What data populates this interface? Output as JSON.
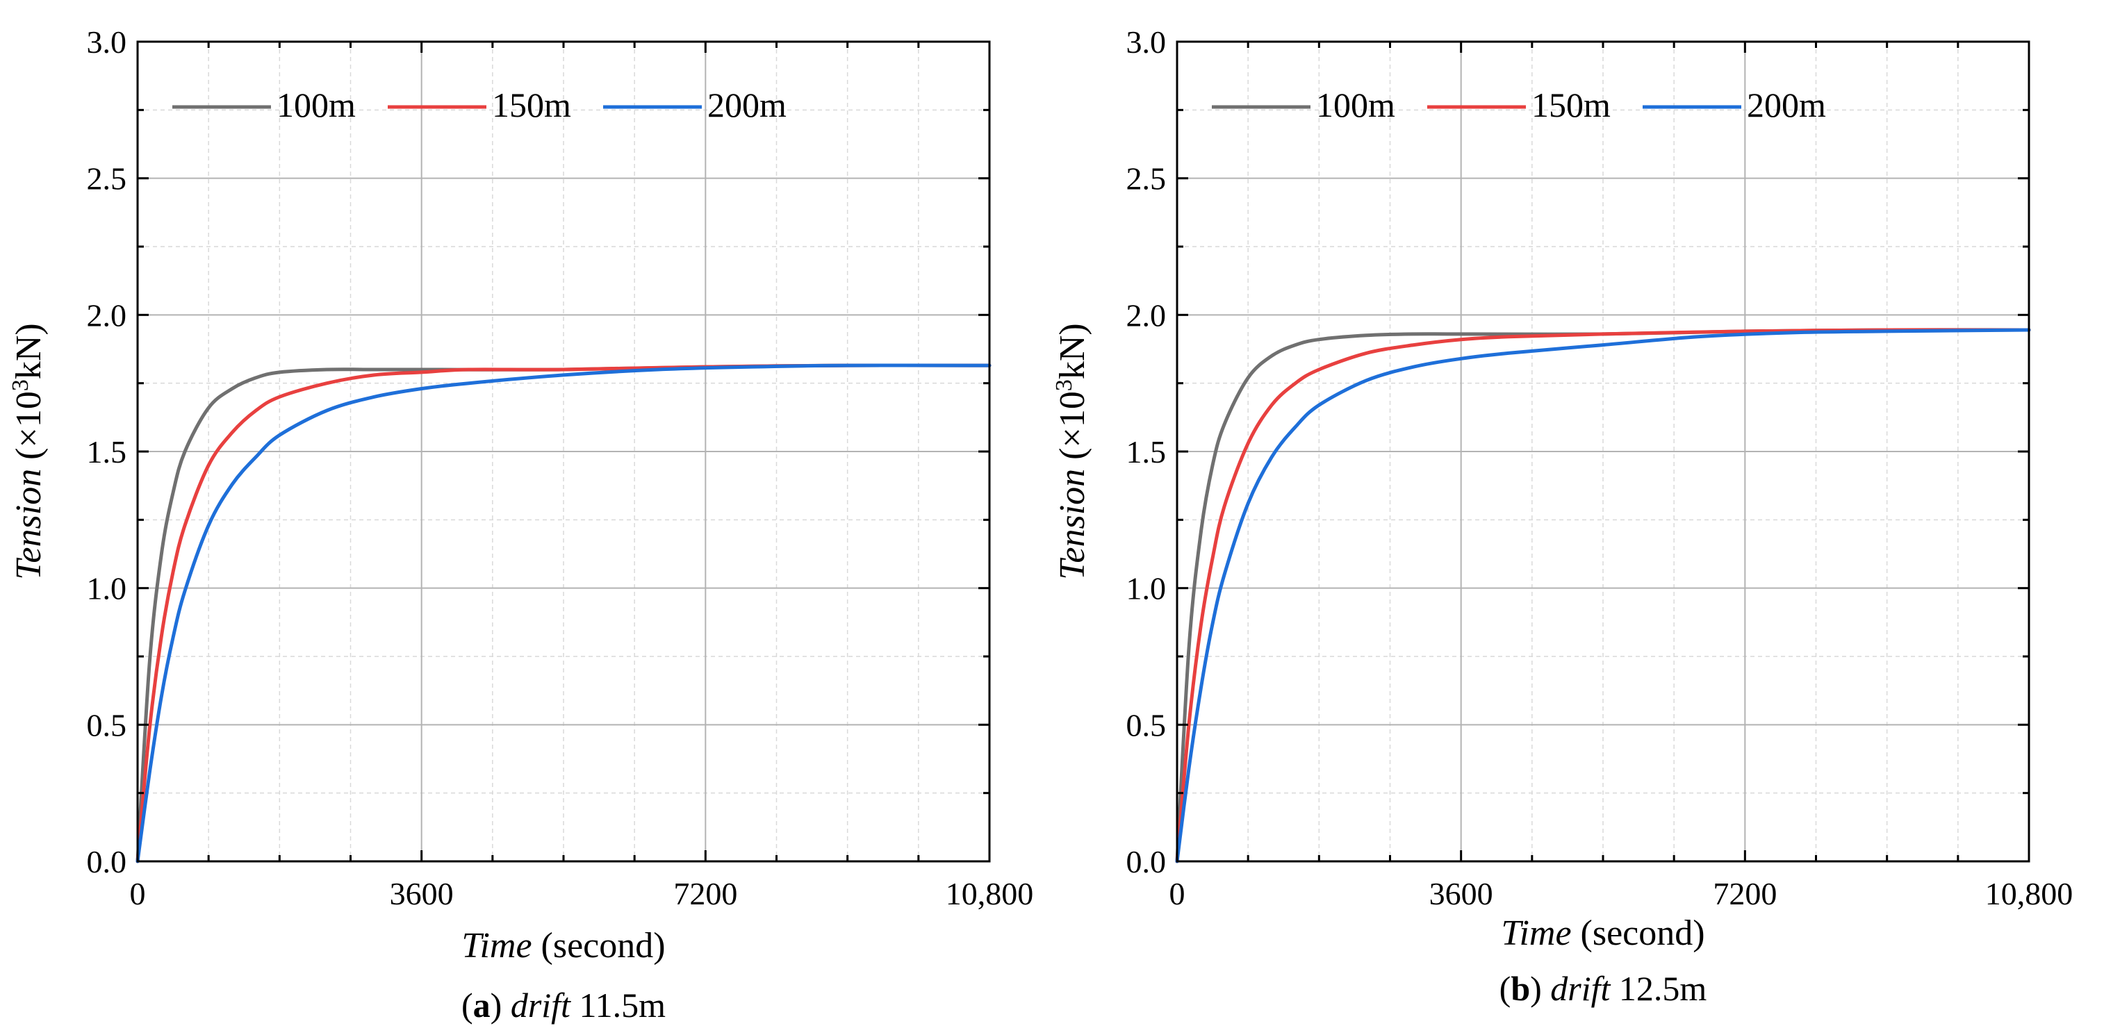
{
  "chart_data": [
    {
      "type": "line",
      "panel_label": "a",
      "caption_italic": "drift",
      "caption_rest": "11.5m",
      "xlabel_italic": "Time",
      "xlabel_rest": "(second)",
      "ylabel_italic": "Tension",
      "ylabel_unit_pre": "(×10",
      "ylabel_unit_sup": "3",
      "ylabel_unit_post": "kN)",
      "xlim": [
        0,
        10800
      ],
      "ylim": [
        0,
        3.0
      ],
      "x_ticks": [
        0,
        3600,
        7200,
        10800
      ],
      "x_tick_labels": [
        "0",
        "3600",
        "7200",
        "10,800"
      ],
      "y_ticks": [
        0,
        0.5,
        1.0,
        1.5,
        2.0,
        2.5,
        3.0
      ],
      "y_tick_labels": [
        "0.0",
        "0.5",
        "1.0",
        "1.5",
        "2.0",
        "2.5",
        "3.0"
      ],
      "grid": true,
      "legend_position": "top",
      "series": [
        {
          "name": "100m",
          "color": "#707070",
          "x": [
            0,
            150,
            300,
            450,
            600,
            900,
            1200,
            1500,
            1800,
            2400,
            3000,
            3600,
            5400,
            7200,
            9000,
            10800
          ],
          "y": [
            0,
            0.72,
            1.12,
            1.35,
            1.5,
            1.66,
            1.73,
            1.77,
            1.79,
            1.8,
            1.8,
            1.8,
            1.8,
            1.81,
            1.815,
            1.815
          ]
        },
        {
          "name": "150m",
          "color": "#e8403f",
          "x": [
            0,
            150,
            300,
            450,
            600,
            900,
            1200,
            1500,
            1800,
            2400,
            3000,
            3600,
            4200,
            5400,
            7200,
            9000,
            10800
          ],
          "y": [
            0,
            0.48,
            0.82,
            1.06,
            1.23,
            1.45,
            1.57,
            1.65,
            1.7,
            1.75,
            1.78,
            1.79,
            1.8,
            1.8,
            1.81,
            1.815,
            1.815
          ]
        },
        {
          "name": "200m",
          "color": "#1e6fd9",
          "x": [
            0,
            150,
            300,
            450,
            600,
            900,
            1200,
            1500,
            1800,
            2400,
            3000,
            3600,
            4200,
            5400,
            6600,
            7800,
            9000,
            10800
          ],
          "y": [
            0,
            0.32,
            0.6,
            0.82,
            0.99,
            1.23,
            1.38,
            1.48,
            1.56,
            1.65,
            1.7,
            1.73,
            1.75,
            1.78,
            1.8,
            1.81,
            1.815,
            1.815
          ]
        }
      ]
    },
    {
      "type": "line",
      "panel_label": "b",
      "caption_italic": "drift",
      "caption_rest": "12.5m",
      "xlabel_italic": "Time",
      "xlabel_rest": "(second)",
      "ylabel_italic": "Tension",
      "ylabel_unit_pre": "(×10",
      "ylabel_unit_sup": "3",
      "ylabel_unit_post": "kN)",
      "xlim": [
        0,
        10800
      ],
      "ylim": [
        0,
        3.0
      ],
      "x_ticks": [
        0,
        3600,
        7200,
        10800
      ],
      "x_tick_labels": [
        "0",
        "3600",
        "7200",
        "10,800"
      ],
      "y_ticks": [
        0,
        0.5,
        1.0,
        1.5,
        2.0,
        2.5,
        3.0
      ],
      "y_tick_labels": [
        "0.0",
        "0.5",
        "1.0",
        "1.5",
        "2.0",
        "2.5",
        "3.0"
      ],
      "grid": true,
      "legend_position": "top",
      "series": [
        {
          "name": "100m",
          "color": "#707070",
          "x": [
            0,
            150,
            300,
            450,
            600,
            900,
            1200,
            1500,
            1800,
            2400,
            3000,
            3600,
            5400,
            7200,
            9000,
            10800
          ],
          "y": [
            0,
            0.78,
            1.2,
            1.45,
            1.6,
            1.77,
            1.85,
            1.89,
            1.91,
            1.925,
            1.93,
            1.93,
            1.93,
            1.94,
            1.945,
            1.945
          ]
        },
        {
          "name": "150m",
          "color": "#e8403f",
          "x": [
            0,
            150,
            300,
            450,
            600,
            900,
            1200,
            1500,
            1800,
            2400,
            3000,
            3600,
            4200,
            5400,
            7200,
            9000,
            10800
          ],
          "y": [
            0,
            0.5,
            0.86,
            1.11,
            1.3,
            1.53,
            1.67,
            1.75,
            1.8,
            1.86,
            1.89,
            1.91,
            1.92,
            1.93,
            1.94,
            1.945,
            1.945
          ]
        },
        {
          "name": "200m",
          "color": "#1e6fd9",
          "x": [
            0,
            150,
            300,
            450,
            600,
            900,
            1200,
            1500,
            1800,
            2400,
            3000,
            3600,
            4200,
            5400,
            6600,
            7800,
            9000,
            10800
          ],
          "y": [
            0,
            0.34,
            0.63,
            0.87,
            1.05,
            1.31,
            1.48,
            1.59,
            1.67,
            1.76,
            1.81,
            1.84,
            1.86,
            1.89,
            1.92,
            1.935,
            1.94,
            1.945
          ]
        }
      ]
    }
  ]
}
